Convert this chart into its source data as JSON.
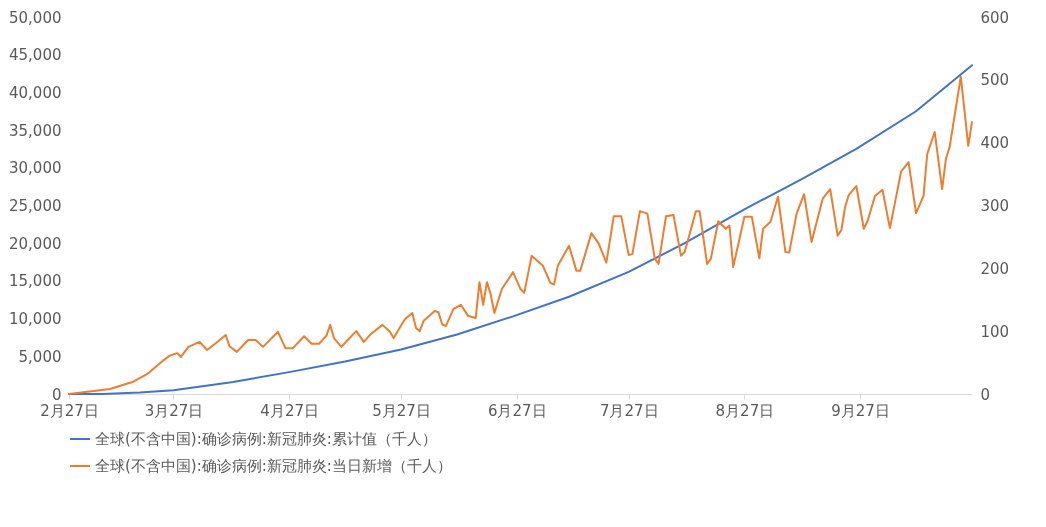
{
  "chart_data": {
    "type": "line",
    "xlim": [
      "--02-27",
      "--10-27"
    ],
    "xticks": [
      {
        "value": "--02-27",
        "label": "2月27日"
      },
      {
        "value": "--03-27",
        "label": "3月27日"
      },
      {
        "value": "--04-27",
        "label": "4月27日"
      },
      {
        "value": "--05-27",
        "label": "5月27日"
      },
      {
        "value": "--06-27",
        "label": "6月27日"
      },
      {
        "value": "--07-27",
        "label": "7月27日"
      },
      {
        "value": "--08-27",
        "label": "8月27日"
      },
      {
        "value": "--09-27",
        "label": "9月27日"
      }
    ],
    "ylim": [
      0,
      50000
    ],
    "yticks": [
      0,
      {
        "value": 5000,
        "label": "5,000"
      },
      {
        "value": 10000,
        "label": "10,000"
      },
      {
        "value": 15000,
        "label": "15,000"
      },
      {
        "value": 20000,
        "label": "20,000"
      },
      {
        "value": 25000,
        "label": "25,000"
      },
      {
        "value": 30000,
        "label": "30,000"
      },
      {
        "value": 35000,
        "label": "35,000"
      },
      {
        "value": 40000,
        "label": "40,000"
      },
      {
        "value": 45000,
        "label": "45,000"
      },
      {
        "value": 50000,
        "label": "50,000"
      }
    ],
    "y2lim": [
      0,
      600
    ],
    "y2ticks": [
      0,
      100,
      200,
      300,
      400,
      500,
      600
    ],
    "grid": false,
    "legend": "bottom",
    "series": [
      {
        "name": "全球(不含中国):确诊病例:新冠肺炎:累计值（千人）",
        "color": "#4472c4",
        "x": [
          "--02-27",
          "--03-08",
          "--03-18",
          "--03-27",
          "--04-12",
          "--04-27",
          "--05-12",
          "--05-27",
          "--06-11",
          "--06-26",
          "--07-11",
          "--07-27",
          "--08-11",
          "--08-27",
          "--09-11",
          "--09-26",
          "--10-12",
          "--10-27"
        ],
        "values": [
          0,
          0,
          200,
          500,
          1600,
          2900,
          4300,
          5900,
          7900,
          10300,
          12900,
          16200,
          20000,
          24500,
          28400,
          32500,
          37500,
          43600
        ]
      },
      {
        "name": "全球(不含中国):确诊病例:新冠肺炎:当日新增（千人）",
        "color": "#ed7d31",
        "axis": "y2",
        "x": [
          "--02-27",
          "--03-10",
          "--03-16",
          "--03-20",
          "--03-24",
          "--03-26",
          "--03-28",
          "--03-29",
          "--03-31",
          "--04-03",
          "--04-05",
          "--04-08",
          "--04-10",
          "--04-11",
          "--04-13",
          "--04-16",
          "--04-18",
          "--04-20",
          "--04-24",
          "--04-26",
          "--04-28",
          "--05-01",
          "--05-03",
          "--05-05",
          "--05-07",
          "--05-08",
          "--05-09",
          "--05-11",
          "--05-13",
          "--05-15",
          "--05-17",
          "--05-19",
          "--05-22",
          "--05-24",
          "--05-25",
          "--05-28",
          "--05-30",
          "--05-31",
          "--06-01",
          "--06-02",
          "--06-05",
          "--06-06",
          "--06-07",
          "--06-08",
          "--06-10",
          "--06-12",
          "--06-14",
          "--06-16",
          "--06-17",
          "--06-18",
          "--06-19",
          "--06-20",
          "--06-21",
          "--06-23",
          "--06-26",
          "--06-28",
          "--06-29",
          "--07-01",
          "--07-04",
          "--07-06",
          "--07-07",
          "--07-08",
          "--07-11",
          "--07-13",
          "--07-14",
          "--07-17",
          "--07-19",
          "--07-21",
          "--07-23",
          "--07-25",
          "--07-27",
          "--07-28",
          "--07-30",
          "--08-01",
          "--08-03",
          "--08-04",
          "--08-06",
          "--08-08",
          "--08-10",
          "--08-11",
          "--08-14",
          "--08-15",
          "--08-17",
          "--08-18",
          "--08-20",
          "--08-22",
          "--08-23",
          "--08-24",
          "--08-27",
          "--08-29",
          "--08-31",
          "--09-01",
          "--09-03",
          "--09-05",
          "--09-07",
          "--09-08",
          "--09-10",
          "--09-12",
          "--09-14",
          "--09-17",
          "--09-19",
          "--09-21",
          "--09-22",
          "--09-23",
          "--09-24",
          "--09-26",
          "--09-28",
          "--09-29",
          "--10-01",
          "--10-03",
          "--10-05",
          "--10-08",
          "--10-10",
          "--10-12",
          "--10-14",
          "--10-15",
          "--10-17",
          "--10-19",
          "--10-20",
          "--10-21",
          "--10-24",
          "--10-26",
          "--10-27"
        ],
        "values": [
          0,
          8,
          19,
          32,
          52,
          61,
          65,
          59,
          75,
          83,
          70,
          84,
          94,
          76,
          67,
          86,
          86,
          75,
          99,
          73,
          73,
          92,
          80,
          80,
          93,
          110,
          89,
          75,
          88,
          100,
          83,
          96,
          110,
          99,
          89,
          119,
          129,
          105,
          100,
          116,
          132,
          130,
          111,
          108,
          135,
          142,
          124,
          121,
          178,
          142,
          178,
          159,
          129,
          167,
          194,
          167,
          161,
          220,
          204,
          177,
          174,
          204,
          236,
          196,
          196,
          256,
          239,
          209,
          283,
          283,
          221,
          223,
          291,
          287,
          215,
          207,
          283,
          285,
          220,
          226,
          291,
          291,
          207,
          215,
          275,
          263,
          268,
          202,
          282,
          282,
          216,
          263,
          274,
          314,
          226,
          225,
          287,
          318,
          242,
          311,
          326,
          252,
          261,
          298,
          317,
          331,
          263,
          275,
          315,
          325,
          264,
          354,
          369,
          288,
          315,
          382,
          417,
          326,
          374,
          393,
          505,
          395,
          433
        ]
      }
    ]
  }
}
